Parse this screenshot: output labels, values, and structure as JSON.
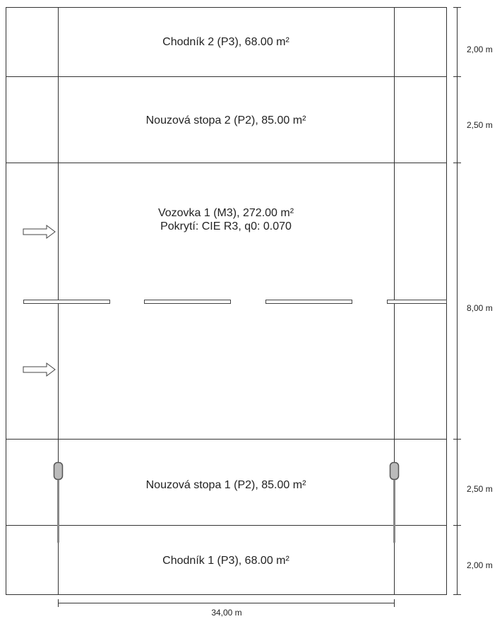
{
  "strips": [
    {
      "id": "chodnik-2",
      "lines": [
        "Chodník 2 (P3), 68.00 m²"
      ],
      "width_label": "2,00 m"
    },
    {
      "id": "nouzova-stopa-2",
      "lines": [
        "Nouzová stopa 2 (P2), 85.00 m²"
      ],
      "width_label": "2,50 m"
    },
    {
      "id": "vozovka-1",
      "lines": [
        "Vozovka 1 (M3), 272.00 m²",
        "Pokrytí: CIE R3, q0: 0.070"
      ],
      "width_label": "8,00 m"
    },
    {
      "id": "nouzova-stopa-1",
      "lines": [
        "Nouzová stopa 1 (P2), 85.00 m²"
      ],
      "width_label": "2,50 m"
    },
    {
      "id": "chodnik-1",
      "lines": [
        "Chodník 1 (P3), 68.00 m²"
      ],
      "width_label": "2,00 m"
    }
  ],
  "length_label": "34,00 m",
  "icons": [
    "traffic-direction-arrow-icon",
    "luminaire-icon"
  ],
  "colors": {
    "line": "#333333",
    "background": "#ffffff"
  }
}
